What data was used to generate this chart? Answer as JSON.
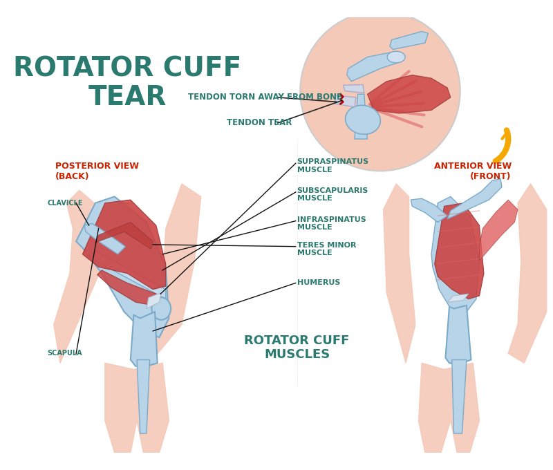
{
  "title": "ROTATOR CUFF\nTEAR",
  "title_color": "#2a7a6f",
  "title_fontsize": 28,
  "title_weight": "bold",
  "bg_color": "#ffffff",
  "label_color": "#2a7a6f",
  "label_fontsize": 8.5,
  "red_label_color": "#cc2200",
  "annotation_color": "#1a1a1a",
  "skin_color": "#f5c9b8",
  "bone_color": "#b8d4e8",
  "bone_outline": "#7aaac8",
  "muscle_color": "#cc4444",
  "muscle_light": "#e07070",
  "tendon_color": "#d0d8e8",
  "circle_bg": "#f5c9b8",
  "arrow_color": "#f5a800",
  "tear_color": "#aa0000",
  "posterior_label": "POSTERIOR VIEW\n(BACK)",
  "anterior_label": "ANTERIOR VIEW\n(FRONT)",
  "rotator_label": "ROTATOR CUFF\nMUSCLES",
  "labels": {
    "clavicle": "CLAVICLE",
    "scapula": "SCAPULA",
    "supraspinatus": "SUPRASPINATUS\nMUSCLE",
    "subscapularis": "SUBSCAPULARIS\nMUSCLE",
    "infraspinatus": "INFRASPINATUS\nMUSCLE",
    "teres_minor": "TERES MINOR\nMUSCLE",
    "humerus": "HUMERUS",
    "tendon_torn": "TENDON TORN AWAY FROM BONE",
    "tendon_tear": "TENDON TEAR"
  }
}
